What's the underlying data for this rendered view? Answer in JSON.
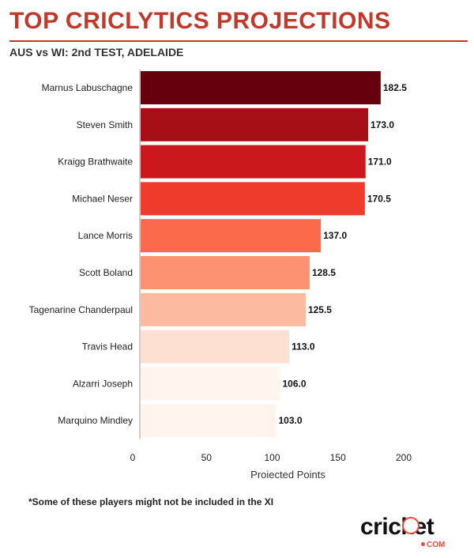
{
  "header": {
    "title": "TOP CRICLYTICS PROJECTIONS",
    "subtitle": "AUS vs WI: 2nd TEST, ADELAIDE",
    "accent_color": "#c0392b"
  },
  "footnote": "*Some of these players might not be included in the XI",
  "logo": {
    "wordmark": "cricket",
    "sub": "COM",
    "accent_color": "#e74c3c"
  },
  "chart_data": {
    "type": "bar",
    "orientation": "horizontal",
    "title": "",
    "xlabel": "Projected Points",
    "ylabel": "",
    "xlim": [
      0,
      200
    ],
    "xticks": [
      0,
      50,
      100,
      150,
      200
    ],
    "grid": false,
    "categories": [
      "Marnus Labuschagne",
      "Steven Smith",
      "Kraigg Brathwaite",
      "Michael Neser",
      "Lance Morris",
      "Scott Boland",
      "Tagenarine Chanderpaul",
      "Travis Head",
      "Alzarri Joseph",
      "Marquino Mindley"
    ],
    "values": [
      182.5,
      173.0,
      171.0,
      170.5,
      137.0,
      128.5,
      125.5,
      113.0,
      106.0,
      103.0
    ],
    "value_labels": [
      "182.5",
      "173.0",
      "171.0",
      "170.5",
      "137.0",
      "128.5",
      "125.5",
      "113.0",
      "106.0",
      "103.0"
    ],
    "colors": [
      "#67000d",
      "#a50f15",
      "#cb181d",
      "#ef3b2c",
      "#fb6a4a",
      "#fc9272",
      "#fcbba1",
      "#fee0d2",
      "#fff5ee",
      "#fff5ee"
    ]
  }
}
